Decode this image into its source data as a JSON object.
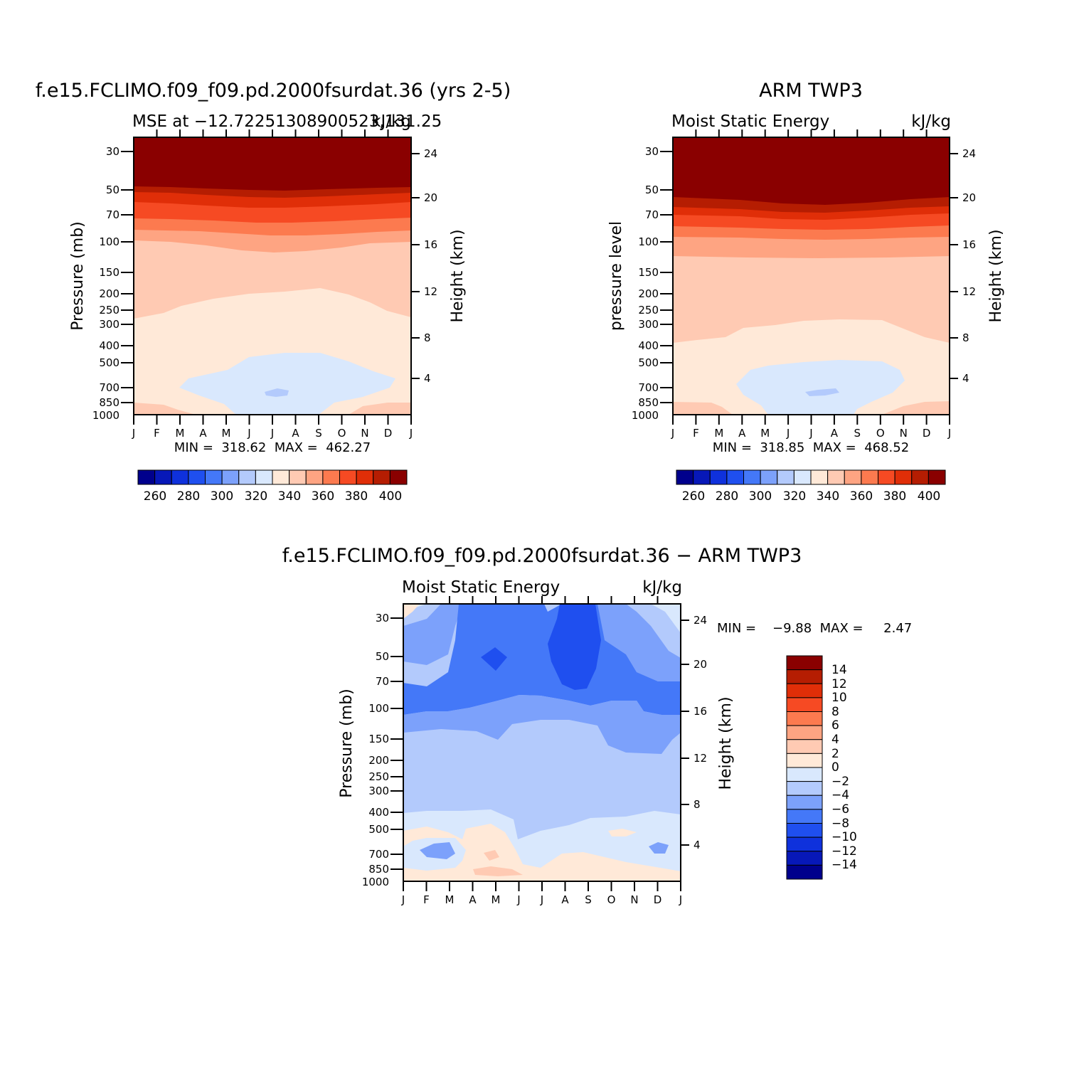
{
  "chart_data": [
    {
      "type": "heatmap",
      "title": "f.e15.FCLIMO.f09_f09.pd.2000fsurdat.36 (yrs 2-5)",
      "subtitle_left": "MSE at −12.72251308900523,131.25",
      "subtitle_right": "kJ/kg",
      "ylabel": "Pressure (mb)",
      "ylabel_right": "Height (km)",
      "x_ticks": [
        "J",
        "F",
        "M",
        "A",
        "M",
        "J",
        "J",
        "A",
        "S",
        "O",
        "N",
        "D",
        "J"
      ],
      "y_ticks": [
        30,
        50,
        70,
        100,
        150,
        200,
        250,
        300,
        400,
        500,
        700,
        850,
        1000
      ],
      "y_ticks_right": [
        24,
        20,
        16,
        12,
        8,
        4
      ],
      "stats": "MIN =  318.62  MAX =  462.27",
      "colorbar": {
        "orientation": "horizontal",
        "labels": [
          "260",
          "280",
          "300",
          "320",
          "340",
          "360",
          "380",
          "400"
        ]
      }
    },
    {
      "type": "heatmap",
      "title": "ARM TWP3",
      "subtitle_left": "Moist Static Energy",
      "subtitle_right": "kJ/kg",
      "ylabel": "pressure level",
      "ylabel_right": "Height (km)",
      "x_ticks": [
        "J",
        "F",
        "M",
        "A",
        "M",
        "J",
        "J",
        "A",
        "S",
        "O",
        "N",
        "D",
        "J"
      ],
      "y_ticks": [
        30,
        50,
        70,
        100,
        150,
        200,
        250,
        300,
        400,
        500,
        700,
        850,
        1000
      ],
      "y_ticks_right": [
        24,
        20,
        16,
        12,
        8,
        4
      ],
      "stats": "MIN =  318.85  MAX =  468.52",
      "colorbar": {
        "orientation": "horizontal",
        "labels": [
          "260",
          "280",
          "300",
          "320",
          "340",
          "360",
          "380",
          "400"
        ]
      }
    },
    {
      "type": "heatmap",
      "title": "f.e15.FCLIMO.f09_f09.pd.2000fsurdat.36 − ARM TWP3",
      "subtitle_left": "Moist Static Energy",
      "subtitle_right": "kJ/kg",
      "ylabel": "Pressure (mb)",
      "ylabel_right": "Height (km)",
      "x_ticks": [
        "J",
        "F",
        "M",
        "A",
        "M",
        "J",
        "J",
        "A",
        "S",
        "O",
        "N",
        "D",
        "J"
      ],
      "y_ticks": [
        30,
        50,
        70,
        100,
        150,
        200,
        250,
        300,
        400,
        500,
        700,
        850,
        1000
      ],
      "y_ticks_right": [
        24,
        20,
        16,
        12,
        8,
        4
      ],
      "stats": "MIN =    −9.88  MAX =     2.47",
      "colorbar": {
        "orientation": "vertical",
        "labels": [
          "14",
          "12",
          "10",
          "8",
          "6",
          "4",
          "2",
          "0",
          "−2",
          "−4",
          "−6",
          "−8",
          "−10",
          "−12",
          "−14"
        ]
      }
    }
  ],
  "colors": {
    "abs_scale": [
      "#00008c",
      "#0718b8",
      "#0f31dc",
      "#1f4fef",
      "#4478f8",
      "#7ca1fb",
      "#b3cafc",
      "#d9e8fd",
      "#ffe9d8",
      "#ffcab3",
      "#fea482",
      "#fc7a4f",
      "#f64a23",
      "#e02e08",
      "#b51d02",
      "#8a0000"
    ],
    "diff_scale": [
      "#8a0000",
      "#b51d02",
      "#e02e08",
      "#f64a23",
      "#fc7a4f",
      "#fea482",
      "#ffcab3",
      "#ffe9d8",
      "#d9e8fd",
      "#b3cafc",
      "#7ca1fb",
      "#4478f8",
      "#1f4fef",
      "#0f31dc",
      "#0718b8",
      "#00008c"
    ]
  }
}
